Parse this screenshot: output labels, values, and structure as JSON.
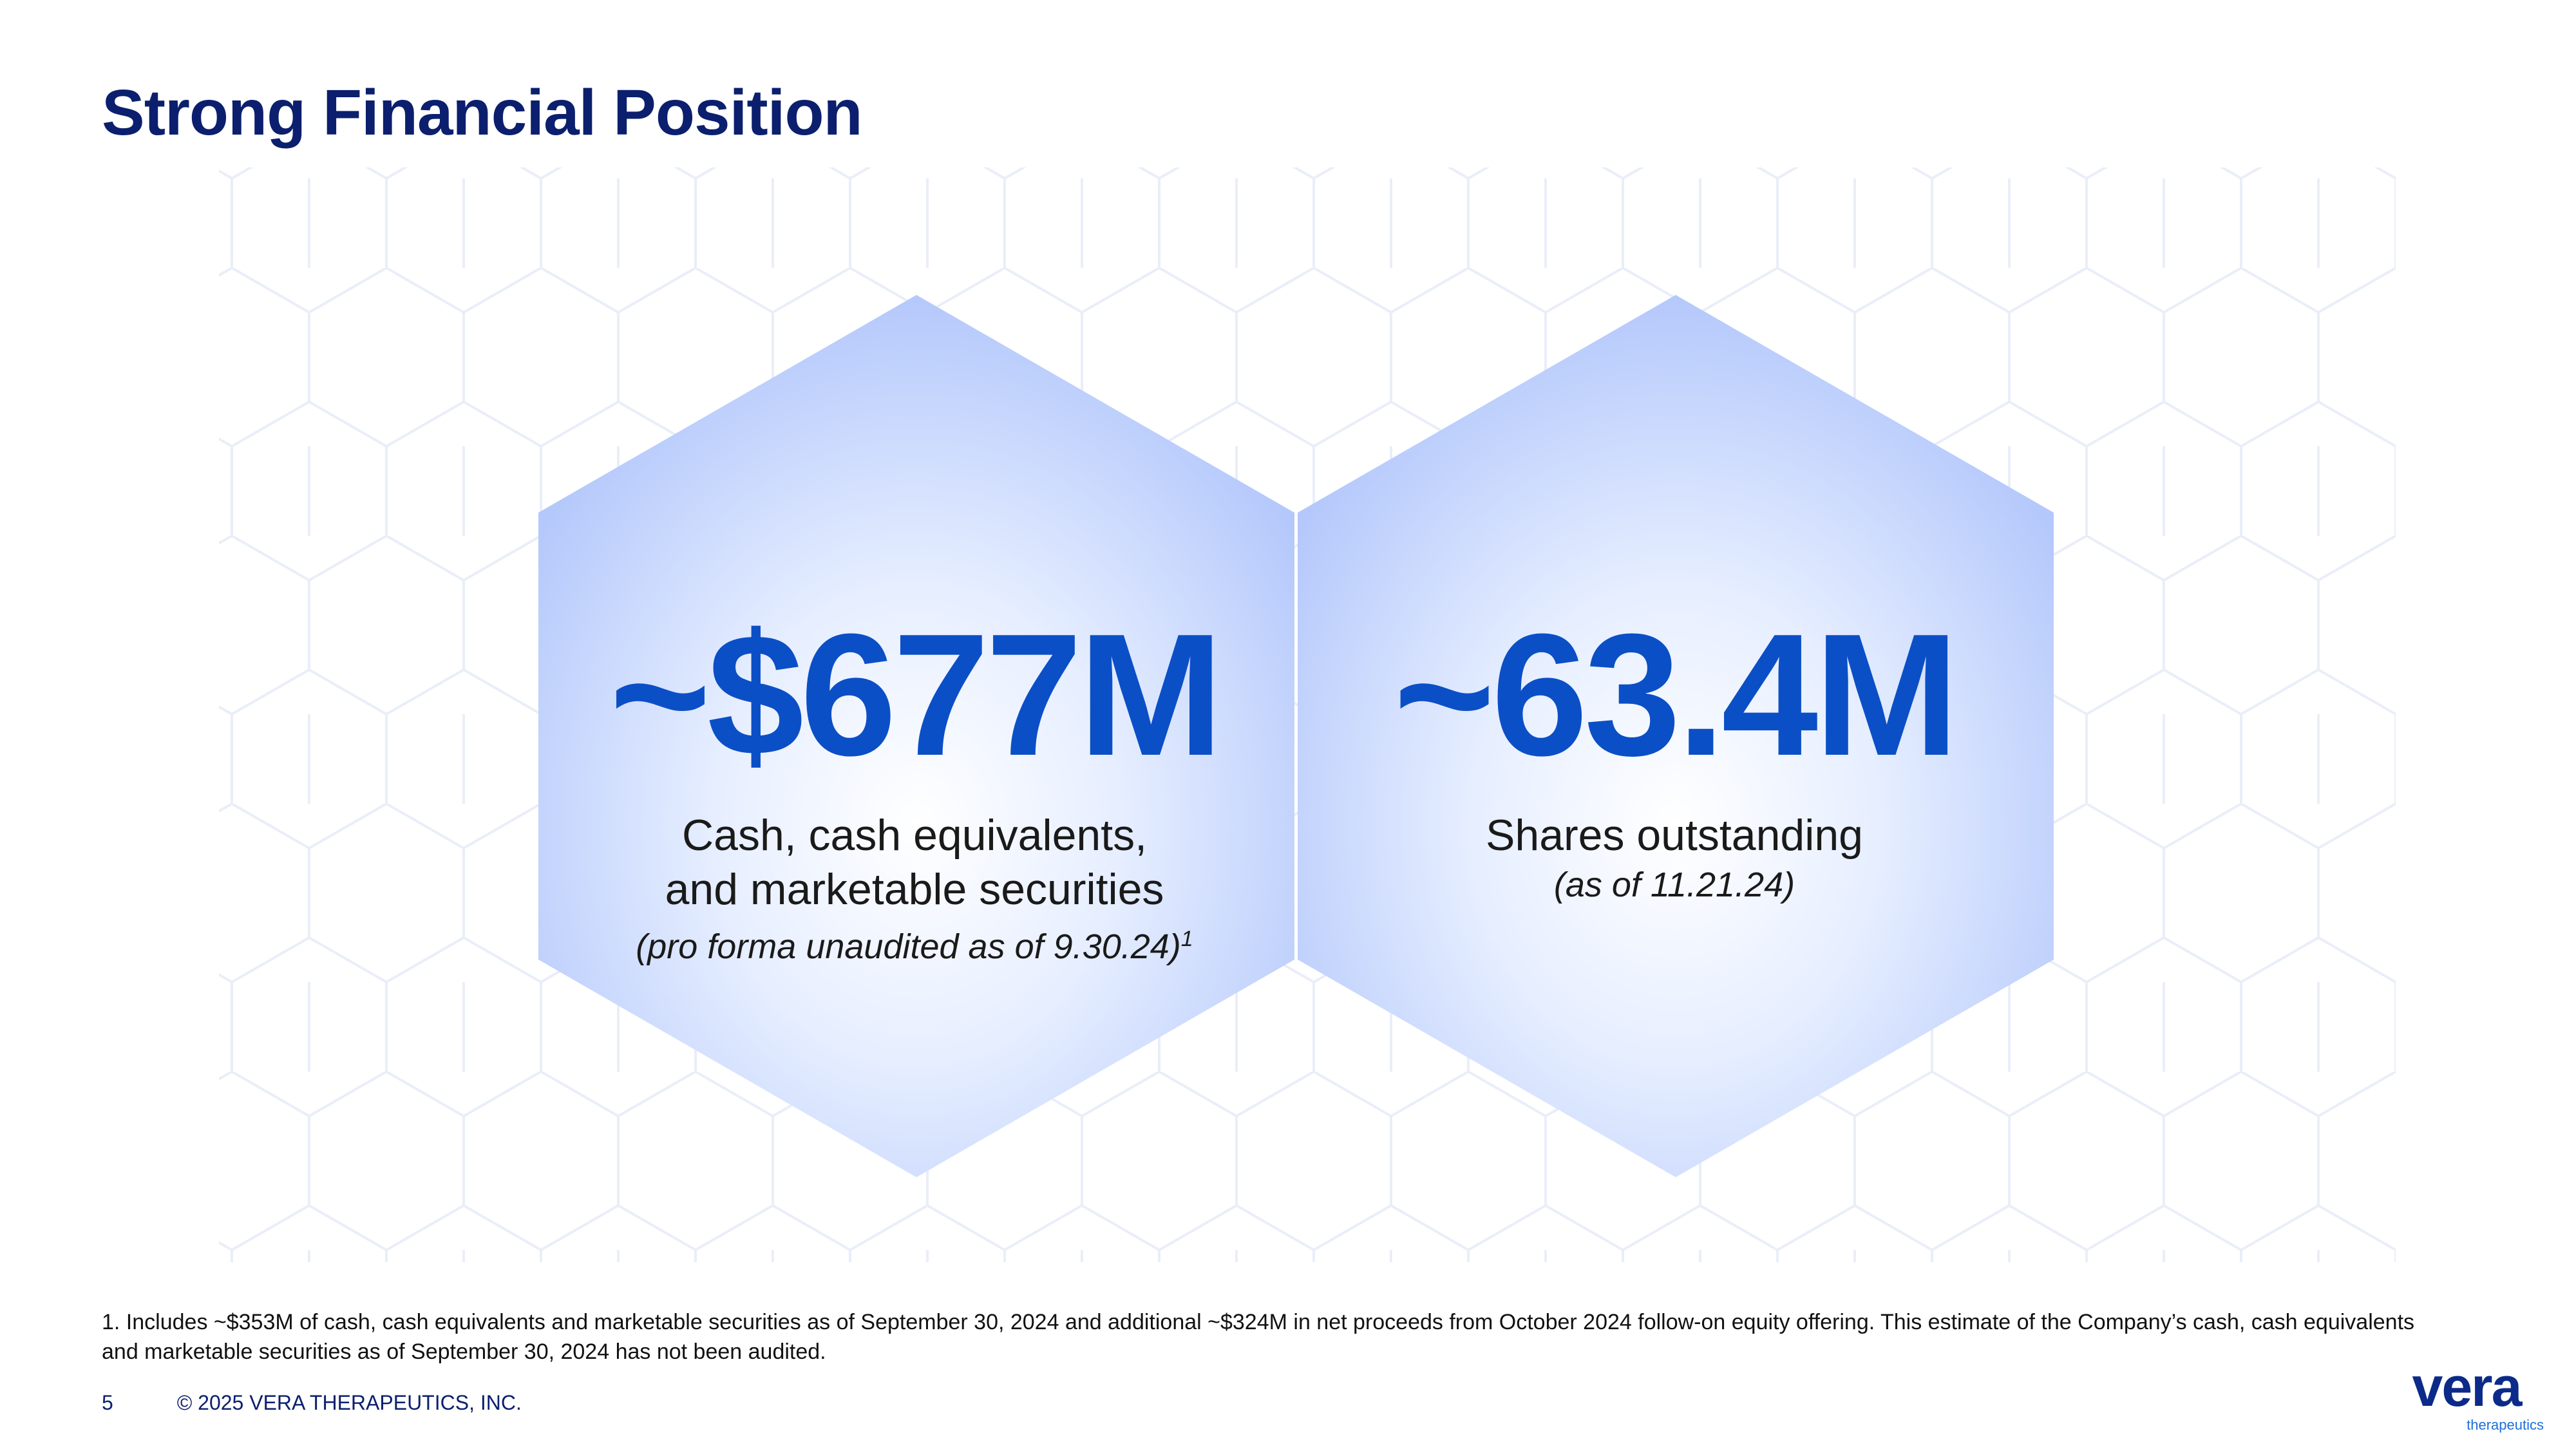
{
  "slide": {
    "title": "Strong Financial Position",
    "page_number": "5",
    "copyright": "© 2025 VERA THERAPEUTICS, INC."
  },
  "stats": [
    {
      "value": "~$677M",
      "label_line1": "Cash, cash equivalents,",
      "label_line2": "and marketable securities",
      "note": "(pro forma unaudited as of 9.30.24)",
      "note_marker": "1"
    },
    {
      "value": "~63.4M",
      "label_line1": "Shares outstanding",
      "note": "(as of 11.21.24)"
    }
  ],
  "footnote": "1. Includes ~$353M of cash, cash equivalents and marketable securities as of September 30, 2024 and additional ~$324M in net proceeds from October 2024 follow-on equity offering. This estimate of the Company’s cash, cash equivalents and marketable securities as of September 30, 2024 has not been audited.",
  "logo": {
    "word": "vera",
    "tagline": "therapeutics"
  },
  "colors": {
    "title": "#0b1f6e",
    "value": "#0b4fc7",
    "hex_edge": "#b4c8fb",
    "hex_center": "#ffffff"
  }
}
